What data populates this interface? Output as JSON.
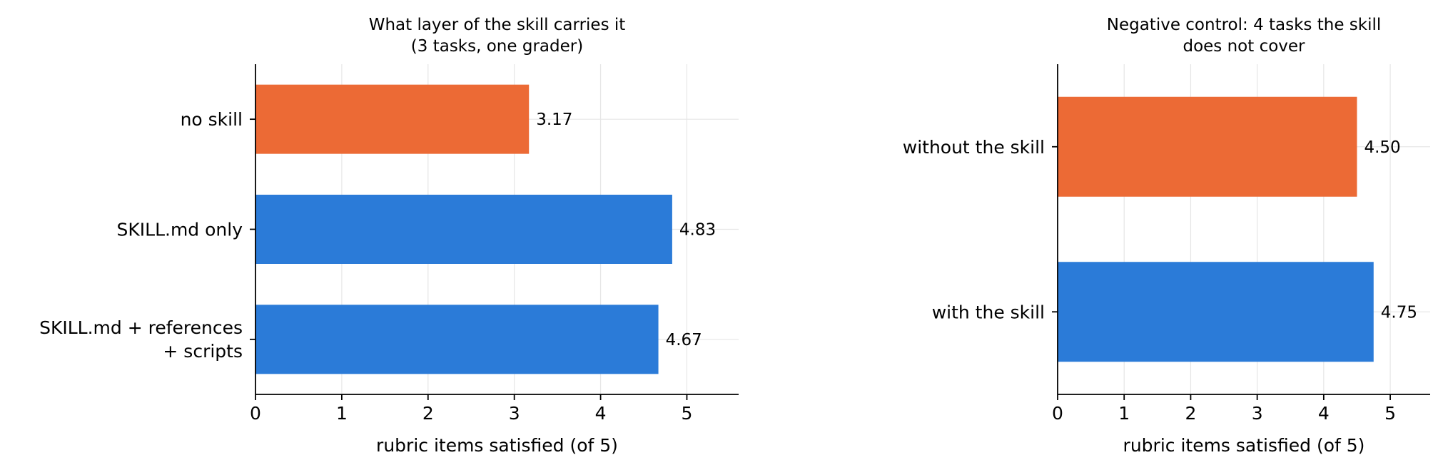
{
  "chart_data": [
    {
      "type": "bar",
      "orientation": "horizontal",
      "title": "What layer of the skill carries it\n(3 tasks, one grader)",
      "categories": [
        "no skill",
        "SKILL.md only",
        "SKILL.md + references\n+ scripts"
      ],
      "values": [
        3.17,
        4.83,
        4.67
      ],
      "value_labels": [
        "3.17",
        "4.83",
        "4.67"
      ],
      "bar_colors": [
        "#EC6A35",
        "#2B7BD8",
        "#2B7BD8"
      ],
      "xlabel": "rubric items satisfied (of 5)",
      "xlim": [
        0,
        5.6
      ],
      "xticks": [
        0,
        1,
        2,
        3,
        4,
        5
      ],
      "grid": true
    },
    {
      "type": "bar",
      "orientation": "horizontal",
      "title": "Negative control: 4 tasks the skill\ndoes not cover",
      "categories": [
        "without the skill",
        "with the skill"
      ],
      "values": [
        4.5,
        4.75
      ],
      "value_labels": [
        "4.50",
        "4.75"
      ],
      "bar_colors": [
        "#EC6A35",
        "#2B7BD8"
      ],
      "xlabel": "rubric items satisfied (of 5)",
      "xlim": [
        0,
        5.6
      ],
      "xticks": [
        0,
        1,
        2,
        3,
        4,
        5
      ],
      "grid": true
    }
  ]
}
